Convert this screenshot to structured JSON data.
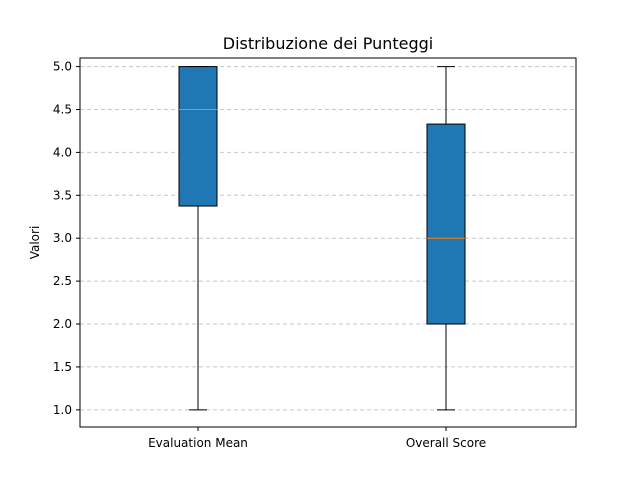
{
  "chart_data": {
    "type": "box",
    "title": "Distribuzione dei Punteggi",
    "xlabel": "",
    "ylabel": "Valori",
    "ylim": [
      0.8,
      5.1
    ],
    "yticks": [
      1.0,
      1.5,
      2.0,
      2.5,
      3.0,
      3.5,
      4.0,
      4.5,
      5.0
    ],
    "ytick_labels": [
      "1.0",
      "1.5",
      "2.0",
      "2.5",
      "3.0",
      "3.5",
      "4.0",
      "4.5",
      "5.0"
    ],
    "grid": {
      "axis": "y",
      "style": "dashed"
    },
    "categories": [
      "Evaluation Mean",
      "Overall Score"
    ],
    "boxes": [
      {
        "name": "Evaluation Mean",
        "whisker_low": 1.0,
        "q1": 3.375,
        "median": 4.5,
        "q3": 5.0,
        "whisker_high": 5.0
      },
      {
        "name": "Overall Score",
        "whisker_low": 1.0,
        "q1": 2.0,
        "median": 3.0,
        "q3": 4.33,
        "whisker_high": 5.0
      }
    ],
    "colors": {
      "box_fill": "#1f77b4",
      "median": "#ff7f0e",
      "grid": "#c8c8c8",
      "line": "#000000"
    }
  }
}
